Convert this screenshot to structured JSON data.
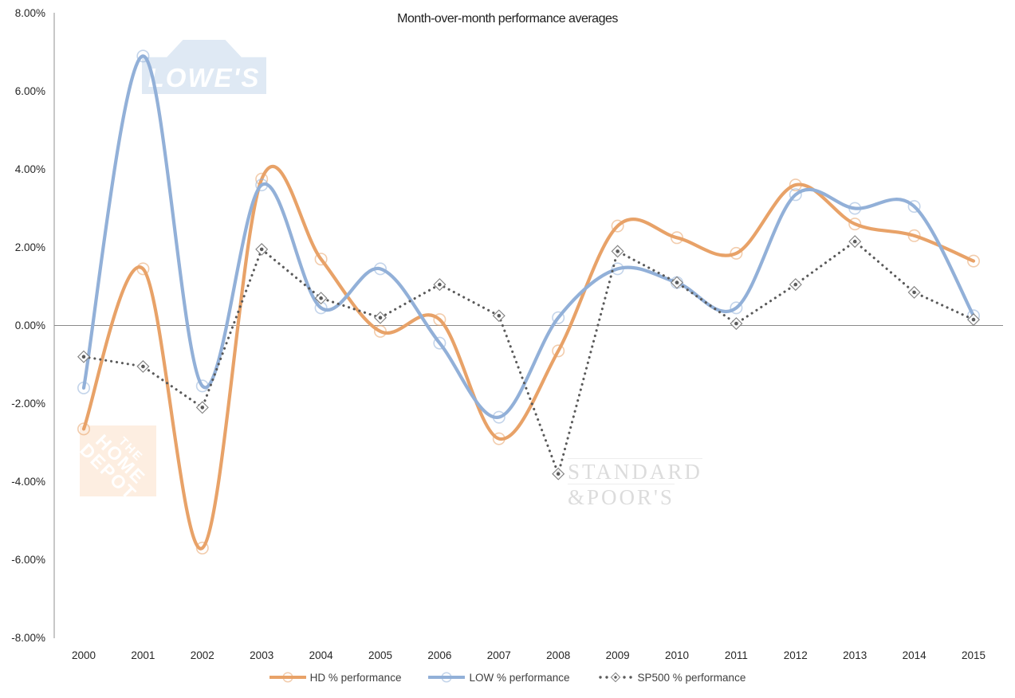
{
  "chart_data": {
    "type": "line",
    "title": "Month-over-month performance averages",
    "categories": [
      "2000",
      "2001",
      "2002",
      "2003",
      "2004",
      "2005",
      "2006",
      "2007",
      "2008",
      "2009",
      "2010",
      "2011",
      "2012",
      "2013",
      "2014",
      "2015"
    ],
    "series": [
      {
        "name": "HD % performance",
        "color": "#E8A268",
        "marker": "circle",
        "line_style": "smooth",
        "values": [
          -2.65,
          1.45,
          -5.7,
          3.75,
          1.7,
          -0.15,
          0.15,
          -2.9,
          -0.65,
          2.55,
          2.25,
          1.85,
          3.6,
          2.6,
          2.3,
          1.65
        ]
      },
      {
        "name": "LOW % performance",
        "color": "#92B0D8",
        "marker": "circle",
        "line_style": "smooth",
        "values": [
          -1.6,
          6.9,
          -1.55,
          3.6,
          0.45,
          1.45,
          -0.45,
          -2.35,
          0.2,
          1.45,
          1.1,
          0.45,
          3.35,
          3.0,
          3.05,
          0.25
        ]
      },
      {
        "name": "SP500 % performance",
        "color": "#595959",
        "marker": "diamond",
        "line_style": "dotted",
        "values": [
          -0.8,
          -1.05,
          -2.1,
          1.95,
          0.7,
          0.2,
          1.05,
          0.25,
          -3.8,
          1.9,
          1.1,
          0.05,
          1.05,
          2.15,
          0.85,
          0.15
        ]
      }
    ],
    "yticks": [
      {
        "label": "8.00%",
        "value": 8
      },
      {
        "label": "6.00%",
        "value": 6
      },
      {
        "label": "4.00%",
        "value": 4
      },
      {
        "label": "2.00%",
        "value": 2
      },
      {
        "label": "0.00%",
        "value": 0
      },
      {
        "label": "-2.00%",
        "value": -2
      },
      {
        "label": "-4.00%",
        "value": -4
      },
      {
        "label": "-6.00%",
        "value": -6
      },
      {
        "label": "-8.00%",
        "value": -8
      }
    ],
    "ylim": [
      -8,
      8
    ],
    "grid": "zero-line-only",
    "legend_position": "bottom"
  },
  "watermarks": {
    "lowes": {
      "text": "LOWE'S",
      "background": "#dfe9f4"
    },
    "home_depot": {
      "lines": [
        "THE",
        "HOME",
        "DEPOT"
      ],
      "background": "#fdeee1"
    },
    "standard_poors": {
      "line1": "STANDARD",
      "line2": "&POOR'S",
      "color": "#dcdcdc"
    }
  }
}
